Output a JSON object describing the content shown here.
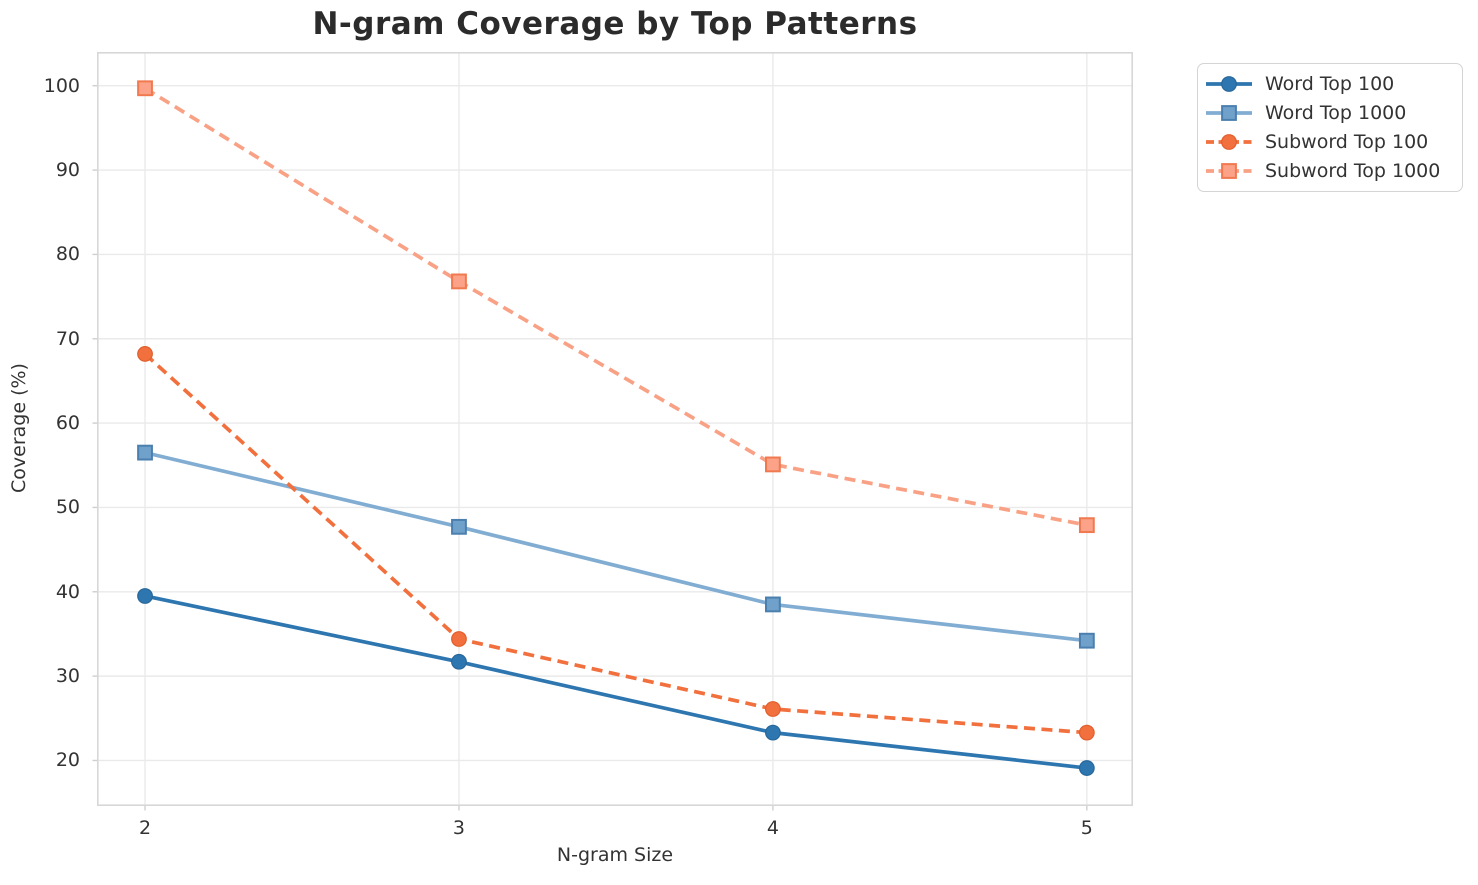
{
  "figure": {
    "background": "#ffffff",
    "grid_color": "#eaeaea",
    "spine_color": "#d7d7d7",
    "tick_color": "#cfcfcf",
    "text_color": "#333333",
    "title_color": "#2b2b2b"
  },
  "chart_data": {
    "type": "line",
    "title": "N-gram Coverage by Top Patterns",
    "xlabel": "N-gram Size",
    "ylabel": "Coverage (%)",
    "x": [
      2,
      3,
      4,
      5
    ],
    "xticks": [
      2,
      3,
      4,
      5
    ],
    "yticks": [
      100,
      90,
      80,
      70,
      60,
      50,
      40,
      30,
      20
    ],
    "xlim": [
      1.847,
      5.147
    ],
    "ylim": [
      14.6,
      104.0
    ],
    "grid": true,
    "legend_position": "outside-top-right",
    "series": [
      {
        "name": "Word Top 100",
        "values": [
          39.5,
          31.7,
          23.3,
          19.1
        ],
        "color": "#2e76b0",
        "marker_fill": "#2e76b0",
        "marker_edge": "#28679a",
        "line_style": "solid",
        "marker": "circle"
      },
      {
        "name": "Word Top 1000",
        "values": [
          56.5,
          47.7,
          38.5,
          34.2
        ],
        "color": "#82add3",
        "marker_fill": "#70a1cb",
        "marker_edge": "#4a7fae",
        "line_style": "solid",
        "marker": "square"
      },
      {
        "name": "Subword Top 100",
        "values": [
          68.2,
          34.4,
          26.1,
          23.3
        ],
        "color": "#f2703d",
        "marker_fill": "#f2703d",
        "marker_edge": "#e05f2d",
        "line_style": "dashed",
        "marker": "circle"
      },
      {
        "name": "Subword Top 1000",
        "values": [
          99.7,
          76.8,
          55.1,
          47.9
        ],
        "color": "#f9a185",
        "marker_fill": "#fba288",
        "marker_edge": "#f0794f",
        "line_style": "dashed",
        "marker": "square"
      }
    ]
  }
}
